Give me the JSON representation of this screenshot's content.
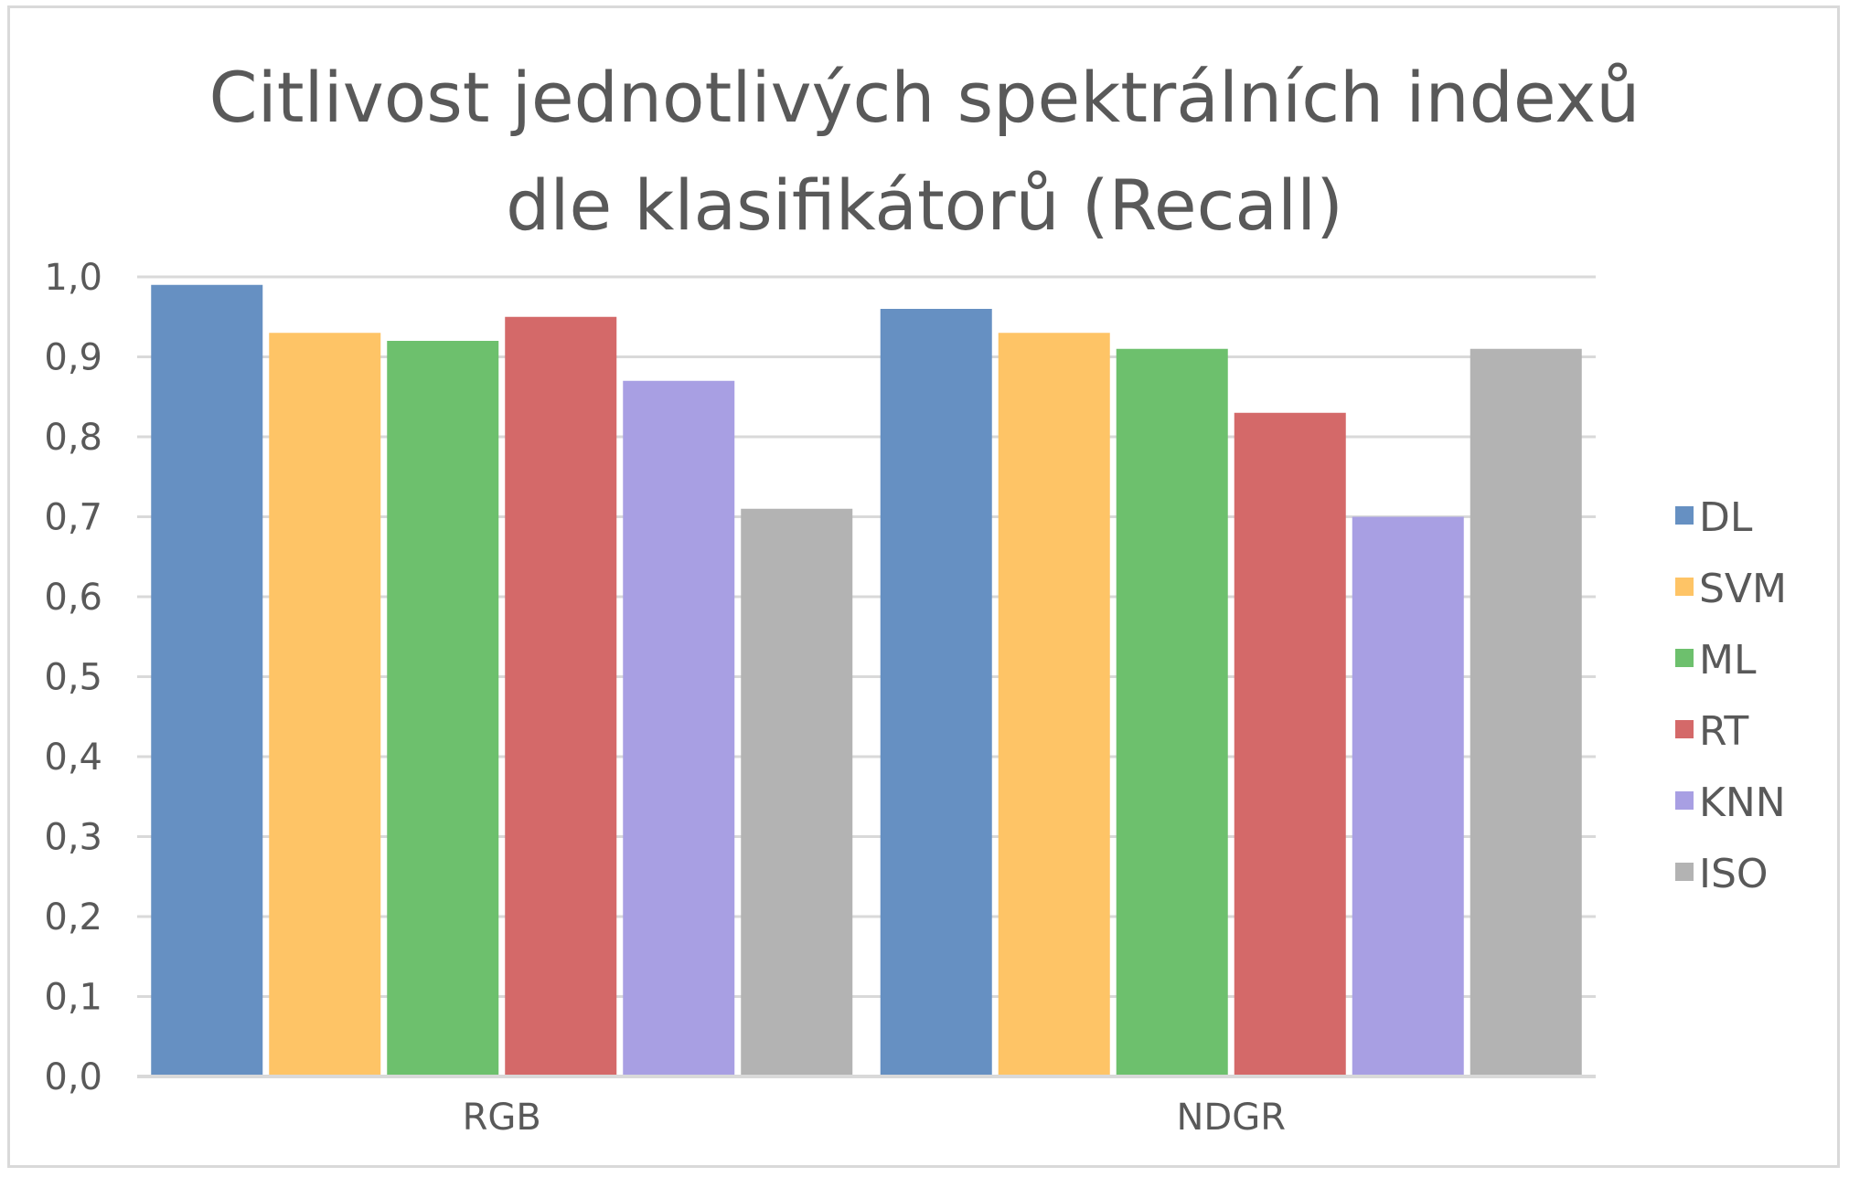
{
  "chart_data": {
    "type": "bar",
    "title_lines": [
      "Citlivost jednotlivých spektrálních indexů",
      "dle klasifikátorů (Recall)"
    ],
    "xlabel": "",
    "ylabel": "",
    "categories": [
      "RGB",
      "NDGR"
    ],
    "ylim": [
      0,
      1.0
    ],
    "yticks": [
      "0,0",
      "0,1",
      "0,2",
      "0,3",
      "0,4",
      "0,5",
      "0,6",
      "0,7",
      "0,8",
      "0,9",
      "1,0"
    ],
    "grid": true,
    "legend_position": "right",
    "series": [
      {
        "name": "DL",
        "color": "#6690c2",
        "values": [
          0.99,
          0.96
        ]
      },
      {
        "name": "SVM",
        "color": "#fec466",
        "values": [
          0.93,
          0.93
        ]
      },
      {
        "name": "ML",
        "color": "#6dc06d",
        "values": [
          0.92,
          0.91
        ]
      },
      {
        "name": "RT",
        "color": "#d46969",
        "values": [
          0.95,
          0.83
        ]
      },
      {
        "name": "KNN",
        "color": "#a89fe3",
        "values": [
          0.87,
          0.7
        ]
      },
      {
        "name": "ISO",
        "color": "#b3b3b3",
        "values": [
          0.71,
          0.91
        ]
      }
    ]
  }
}
